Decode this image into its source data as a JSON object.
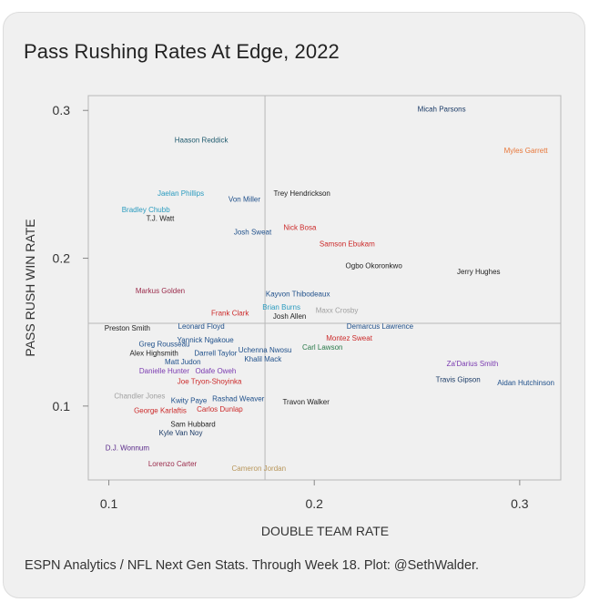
{
  "title": "Pass Rushing Rates At Edge, 2022",
  "caption": "ESPN Analytics / NFL Next Gen Stats. Through Week 18. Plot: @SethWalder.",
  "chart_data": {
    "type": "scatter",
    "title": "Pass Rushing Rates At Edge, 2022",
    "xlabel": "DOUBLE TEAM RATE",
    "ylabel": "PASS RUSH WIN RATE",
    "xlim": [
      0.09,
      0.32
    ],
    "ylim": [
      0.05,
      0.31
    ],
    "xticks": [
      0.1,
      0.2,
      0.3
    ],
    "xtick_labels": [
      "0.1",
      "0.2",
      "0.3"
    ],
    "yticks": [
      0.1,
      0.2,
      0.3
    ],
    "ytick_labels": [
      "0.1",
      "0.2",
      "0.3"
    ],
    "reference_lines": {
      "x": 0.176,
      "y": 0.156
    },
    "points": [
      {
        "label": "Micah Parsons",
        "x": 0.262,
        "y": 0.301,
        "color": "#1a3a66"
      },
      {
        "label": "Myles Garrett",
        "x": 0.303,
        "y": 0.273,
        "color": "#e8773a"
      },
      {
        "label": "Haason Reddick",
        "x": 0.145,
        "y": 0.28,
        "color": "#1f5a6e"
      },
      {
        "label": "Trey Hendrickson",
        "x": 0.194,
        "y": 0.244,
        "color": "#222222"
      },
      {
        "label": "Jaelan Phillips",
        "x": 0.135,
        "y": 0.244,
        "color": "#2a9bbf"
      },
      {
        "label": "Von Miller",
        "x": 0.166,
        "y": 0.24,
        "color": "#1e4f8a"
      },
      {
        "label": "Bradley Chubb",
        "x": 0.118,
        "y": 0.233,
        "color": "#2a9bbf"
      },
      {
        "label": "T.J. Watt",
        "x": 0.125,
        "y": 0.227,
        "color": "#222222"
      },
      {
        "label": "Nick Bosa",
        "x": 0.193,
        "y": 0.221,
        "color": "#cc2a2a"
      },
      {
        "label": "Josh Sweat",
        "x": 0.17,
        "y": 0.218,
        "color": "#1e4f8a"
      },
      {
        "label": "Samson Ebukam",
        "x": 0.216,
        "y": 0.21,
        "color": "#cc2a2a"
      },
      {
        "label": "Ogbo Okoronkwo",
        "x": 0.229,
        "y": 0.195,
        "color": "#222222"
      },
      {
        "label": "Jerry Hughes",
        "x": 0.28,
        "y": 0.191,
        "color": "#222222"
      },
      {
        "label": "Markus Golden",
        "x": 0.125,
        "y": 0.178,
        "color": "#9a2a4a"
      },
      {
        "label": "Kayvon Thibodeaux",
        "x": 0.192,
        "y": 0.176,
        "color": "#1e4f8a"
      },
      {
        "label": "Brian Burns",
        "x": 0.184,
        "y": 0.167,
        "color": "#2a9bbf"
      },
      {
        "label": "Maxx Crosby",
        "x": 0.211,
        "y": 0.165,
        "color": "#a0a0a0"
      },
      {
        "label": "Frank Clark",
        "x": 0.159,
        "y": 0.163,
        "color": "#cc2a2a"
      },
      {
        "label": "Josh Allen",
        "x": 0.188,
        "y": 0.161,
        "color": "#222222"
      },
      {
        "label": "Preston Smith",
        "x": 0.109,
        "y": 0.153,
        "color": "#222222"
      },
      {
        "label": "Leonard Floyd",
        "x": 0.145,
        "y": 0.154,
        "color": "#1e4f8a"
      },
      {
        "label": "Demarcus Lawrence",
        "x": 0.232,
        "y": 0.154,
        "color": "#1e4f8a"
      },
      {
        "label": "Yannick Ngakoue",
        "x": 0.147,
        "y": 0.145,
        "color": "#1e4f8a"
      },
      {
        "label": "Montez Sweat",
        "x": 0.217,
        "y": 0.146,
        "color": "#cc2a2a"
      },
      {
        "label": "Greg Rousseau",
        "x": 0.127,
        "y": 0.142,
        "color": "#1e4f8a"
      },
      {
        "label": "Carl Lawson",
        "x": 0.204,
        "y": 0.14,
        "color": "#2a7a4a"
      },
      {
        "label": "Uchenna Nwosu",
        "x": 0.176,
        "y": 0.138,
        "color": "#1e4f8a"
      },
      {
        "label": "Alex Highsmith",
        "x": 0.122,
        "y": 0.136,
        "color": "#222222"
      },
      {
        "label": "Darrell Taylor",
        "x": 0.152,
        "y": 0.136,
        "color": "#1e4f8a"
      },
      {
        "label": "Khalil Mack",
        "x": 0.175,
        "y": 0.132,
        "color": "#1e4f8a"
      },
      {
        "label": "Matt Judon",
        "x": 0.136,
        "y": 0.13,
        "color": "#1e4f8a"
      },
      {
        "label": "Za'Darius Smith",
        "x": 0.277,
        "y": 0.129,
        "color": "#7a3ab0"
      },
      {
        "label": "Danielle Hunter",
        "x": 0.127,
        "y": 0.124,
        "color": "#7a3ab0"
      },
      {
        "label": "Odafe Oweh",
        "x": 0.152,
        "y": 0.124,
        "color": "#7a3ab0"
      },
      {
        "label": "Travis Gipson",
        "x": 0.27,
        "y": 0.118,
        "color": "#1a3a66"
      },
      {
        "label": "Aidan Hutchinson",
        "x": 0.303,
        "y": 0.116,
        "color": "#1e4f8a"
      },
      {
        "label": "Joe Tryon-Shoyinka",
        "x": 0.149,
        "y": 0.117,
        "color": "#cc2a2a"
      },
      {
        "label": "Chandler Jones",
        "x": 0.115,
        "y": 0.107,
        "color": "#a0a0a0"
      },
      {
        "label": "Kwity Paye",
        "x": 0.139,
        "y": 0.104,
        "color": "#1e4f8a"
      },
      {
        "label": "Rashad Weaver",
        "x": 0.163,
        "y": 0.105,
        "color": "#1e4f8a"
      },
      {
        "label": "Travon Walker",
        "x": 0.196,
        "y": 0.103,
        "color": "#222222"
      },
      {
        "label": "George Karlaftis",
        "x": 0.125,
        "y": 0.097,
        "color": "#cc2a2a"
      },
      {
        "label": "Carlos Dunlap",
        "x": 0.154,
        "y": 0.098,
        "color": "#cc2a2a"
      },
      {
        "label": "Sam Hubbard",
        "x": 0.141,
        "y": 0.088,
        "color": "#222222"
      },
      {
        "label": "Kyle Van Noy",
        "x": 0.135,
        "y": 0.082,
        "color": "#1a3a66"
      },
      {
        "label": "D.J. Wonnum",
        "x": 0.109,
        "y": 0.072,
        "color": "#5a2a8a"
      },
      {
        "label": "Lorenzo Carter",
        "x": 0.131,
        "y": 0.061,
        "color": "#9a2a4a"
      },
      {
        "label": "Cameron Jordan",
        "x": 0.173,
        "y": 0.058,
        "color": "#b8965a"
      }
    ]
  }
}
